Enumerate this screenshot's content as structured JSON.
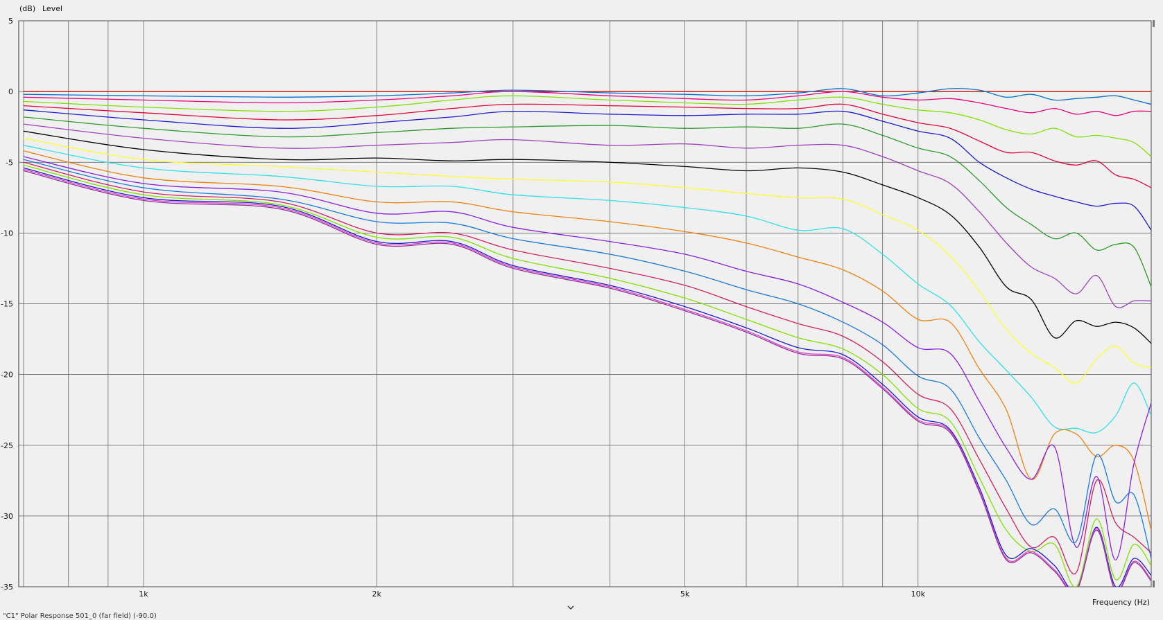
{
  "chart_data": {
    "type": "line",
    "ylabel_unit": "(dB)",
    "ylabel": "Level",
    "xlabel": "Frequency  (Hz)",
    "xscale": "log",
    "xlim": [
      690,
      20000
    ],
    "ylim": [
      -35,
      5
    ],
    "yticks": [
      5,
      0,
      -5,
      -10,
      -15,
      -20,
      -25,
      -30,
      -35
    ],
    "xtick_labels": [
      {
        "value": 1000,
        "label": "1k"
      },
      {
        "value": 2000,
        "label": "2k"
      },
      {
        "value": 5000,
        "label": "5k"
      },
      {
        "value": 10000,
        "label": "10k"
      }
    ],
    "grid": true,
    "x": [
      700,
      1000,
      1500,
      2000,
      2500,
      3000,
      4000,
      5000,
      6000,
      7000,
      8000,
      9000,
      10000,
      11000,
      12000,
      13000,
      14000,
      15000,
      16000,
      17000,
      18000,
      19000,
      20000
    ],
    "series": [
      {
        "color": "#e07b00",
        "values": [
          0,
          0,
          0,
          0,
          0,
          0,
          0,
          0,
          0,
          0,
          0,
          0,
          0,
          0,
          0,
          0,
          0,
          0,
          0,
          0,
          0,
          0,
          0
        ]
      },
      {
        "color": "#cc0000",
        "values": [
          0,
          0,
          0,
          0,
          0,
          0,
          0,
          0,
          0,
          0,
          0,
          0,
          0,
          0,
          0,
          0,
          0,
          0,
          0,
          0,
          0,
          0,
          0
        ]
      },
      {
        "color": "#0070d0",
        "values": [
          -0.2,
          -0.3,
          -0.4,
          -0.3,
          -0.1,
          0.1,
          -0.1,
          -0.2,
          -0.3,
          -0.1,
          0.2,
          -0.3,
          -0.1,
          0.2,
          0.1,
          -0.4,
          -0.2,
          -0.6,
          -0.5,
          -0.4,
          -0.3,
          -0.6,
          -0.9
        ]
      },
      {
        "color": "#e8007a",
        "values": [
          -0.4,
          -0.6,
          -0.8,
          -0.6,
          -0.3,
          0,
          -0.3,
          -0.5,
          -0.6,
          -0.3,
          0,
          -0.4,
          -0.6,
          -0.5,
          -0.8,
          -1.2,
          -1.5,
          -1.2,
          -1.6,
          -1.4,
          -1.7,
          -1.4,
          -1.4
        ]
      },
      {
        "color": "#80e000",
        "values": [
          -0.7,
          -1.1,
          -1.4,
          -1.1,
          -0.6,
          -0.3,
          -0.6,
          -0.8,
          -0.9,
          -0.6,
          -0.4,
          -0.9,
          -1.3,
          -1.5,
          -2,
          -2.7,
          -3,
          -2.6,
          -3.2,
          -3.1,
          -3.3,
          -3.6,
          -4.6
        ]
      },
      {
        "color": "#e0003a",
        "values": [
          -1.0,
          -1.5,
          -2.0,
          -1.7,
          -1.2,
          -0.9,
          -1.0,
          -1.1,
          -1.2,
          -1.2,
          -0.9,
          -1.6,
          -2.2,
          -2.6,
          -3.5,
          -4.3,
          -4.3,
          -4.9,
          -5.2,
          -4.9,
          -5.9,
          -6.2,
          -6.8
        ]
      },
      {
        "color": "#1a1ad0",
        "values": [
          -1.3,
          -2.0,
          -2.6,
          -2.2,
          -1.8,
          -1.4,
          -1.6,
          -1.7,
          -1.6,
          -1.6,
          -1.4,
          -2.1,
          -2.8,
          -3.3,
          -5.0,
          -6.1,
          -6.9,
          -7.4,
          -7.8,
          -8.1,
          -7.9,
          -8.1,
          -9.8
        ]
      },
      {
        "color": "#2a9a2a",
        "values": [
          -1.8,
          -2.6,
          -3.2,
          -2.9,
          -2.6,
          -2.5,
          -2.4,
          -2.6,
          -2.5,
          -2.6,
          -2.3,
          -3.1,
          -4.0,
          -4.6,
          -6.3,
          -8.2,
          -9.4,
          -10.4,
          -10.0,
          -11.2,
          -10.8,
          -11.0,
          -13.8
        ]
      },
      {
        "color": "#a040c0",
        "values": [
          -2.3,
          -3.3,
          -4.0,
          -3.8,
          -3.6,
          -3.4,
          -3.8,
          -3.7,
          -4.0,
          -3.8,
          -3.8,
          -4.6,
          -5.6,
          -6.5,
          -8.5,
          -10.7,
          -12.4,
          -13.2,
          -14.3,
          -13.0,
          -15.2,
          -14.8,
          -14.8
        ]
      },
      {
        "color": "#000000",
        "values": [
          -2.8,
          -4.1,
          -4.8,
          -4.7,
          -4.9,
          -4.8,
          -5.0,
          -5.3,
          -5.6,
          -5.4,
          -5.7,
          -6.6,
          -7.5,
          -8.7,
          -11.0,
          -13.8,
          -14.7,
          -17.4,
          -16.2,
          -16.6,
          -16.3,
          -16.7,
          -17.8
        ]
      },
      {
        "color": "#ffff30",
        "values": [
          -3.3,
          -4.8,
          -5.3,
          -5.7,
          -6.0,
          -6.2,
          -6.4,
          -6.8,
          -7.2,
          -7.5,
          -7.6,
          -8.7,
          -9.8,
          -11.6,
          -14.1,
          -16.8,
          -18.5,
          -19.5,
          -20.6,
          -18.9,
          -18.0,
          -19.2,
          -19.5
        ]
      },
      {
        "color": "#30e0e8",
        "values": [
          -3.8,
          -5.4,
          -6.0,
          -6.7,
          -6.7,
          -7.3,
          -7.7,
          -8.2,
          -8.8,
          -9.8,
          -9.7,
          -11.5,
          -13.6,
          -15.1,
          -17.7,
          -19.7,
          -21.6,
          -23.7,
          -23.8,
          -24.1,
          -22.9,
          -20.6,
          -22.9
        ]
      },
      {
        "color": "#f08010",
        "values": [
          -4.2,
          -6.1,
          -6.7,
          -7.8,
          -7.8,
          -8.5,
          -9.2,
          -9.9,
          -10.7,
          -11.7,
          -12.6,
          -14.1,
          -16.1,
          -16.3,
          -19.6,
          -22.5,
          -27.4,
          -24.2,
          -24.2,
          -25.8,
          -25.0,
          -26.1,
          -31.0
        ]
      },
      {
        "color": "#8820e0",
        "values": [
          -4.6,
          -6.5,
          -7.1,
          -8.6,
          -8.5,
          -9.6,
          -10.6,
          -11.5,
          -12.7,
          -13.6,
          -14.9,
          -16.3,
          -18.1,
          -18.5,
          -21.9,
          -25.2,
          -27.4,
          -25.1,
          -32.2,
          -27.2,
          -33.1,
          -26.3,
          -22.0
        ]
      },
      {
        "color": "#1878e0",
        "values": [
          -4.8,
          -6.8,
          -7.6,
          -9.2,
          -9.3,
          -10.4,
          -11.5,
          -12.7,
          -14.0,
          -15.0,
          -16.3,
          -17.9,
          -20.1,
          -21.0,
          -24.5,
          -27.5,
          -30.6,
          -29.5,
          -31.8,
          -25.7,
          -29.0,
          -28.5,
          -33.0
        ]
      },
      {
        "color": "#d02060",
        "values": [
          -5.0,
          -7.1,
          -7.8,
          -10.0,
          -10.0,
          -11.2,
          -12.5,
          -13.7,
          -15.2,
          -16.4,
          -17.3,
          -19.1,
          -21.4,
          -22.4,
          -26.0,
          -29.5,
          -32.2,
          -31.5,
          -34.0,
          -27.5,
          -30.5,
          -31.5,
          -32.6
        ]
      },
      {
        "color": "#80e000",
        "values": [
          -5.2,
          -7.3,
          -8.0,
          -10.3,
          -10.3,
          -11.8,
          -13.2,
          -14.6,
          -16.1,
          -17.4,
          -18.2,
          -20.0,
          -22.4,
          -23.3,
          -27.3,
          -31.0,
          -32.5,
          -32.0,
          -35.0,
          -30.2,
          -34.5,
          -32.0,
          -33.5
        ]
      },
      {
        "color": "#1a1ad0",
        "values": [
          -5.4,
          -7.5,
          -8.1,
          -10.6,
          -10.6,
          -12.3,
          -13.7,
          -15.2,
          -16.7,
          -18.1,
          -18.6,
          -20.7,
          -23.0,
          -23.9,
          -28.0,
          -32.8,
          -32.3,
          -33.5,
          -35.2,
          -30.8,
          -35.0,
          -33.0,
          -34.2
        ]
      },
      {
        "color": "#e040c0",
        "values": [
          -5.5,
          -7.6,
          -8.2,
          -10.7,
          -10.7,
          -12.4,
          -13.8,
          -15.4,
          -16.9,
          -18.4,
          -18.8,
          -20.9,
          -23.2,
          -24.0,
          -28.2,
          -33.0,
          -32.5,
          -33.8,
          -35.2,
          -30.9,
          -35.2,
          -33.2,
          -34.5
        ]
      },
      {
        "color": "#9030a0",
        "values": [
          -5.6,
          -7.7,
          -8.3,
          -10.8,
          -10.8,
          -12.5,
          -13.9,
          -15.5,
          -17.0,
          -18.5,
          -18.9,
          -21.0,
          -23.3,
          -24.1,
          -28.3,
          -33.1,
          -32.6,
          -33.9,
          -35.3,
          -31.0,
          -35.3,
          -33.3,
          -34.6
        ]
      }
    ]
  },
  "footer": {
    "caption": "\"C1\"  Polar Response 501_0 (far field) (-90.0)"
  }
}
